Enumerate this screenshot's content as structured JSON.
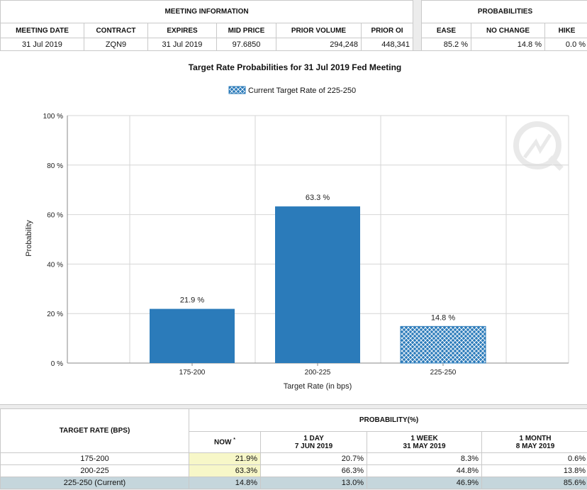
{
  "meeting": {
    "group_title": "MEETING INFORMATION",
    "headers": [
      "MEETING DATE",
      "CONTRACT",
      "EXPIRES",
      "MID PRICE",
      "PRIOR VOLUME",
      "PRIOR OI"
    ],
    "row": [
      "31 Jul 2019",
      "ZQN9",
      "31 Jul 2019",
      "97.6850",
      "294,248",
      "448,341"
    ]
  },
  "probabilities": {
    "group_title": "PROBABILITIES",
    "headers": [
      "EASE",
      "NO CHANGE",
      "HIKE"
    ],
    "row": [
      "85.2 %",
      "14.8 %",
      "0.0 %"
    ]
  },
  "chart_data": {
    "type": "bar",
    "title": "Target Rate Probabilities for 31 Jul 2019 Fed Meeting",
    "legend": "Current Target Rate of 225-250",
    "categories": [
      "175-200",
      "200-225",
      "225-250"
    ],
    "values": [
      21.9,
      63.3,
      14.8
    ],
    "data_labels": [
      "21.9 %",
      "63.3 %",
      "14.8 %"
    ],
    "current_category": "225-250",
    "xlabel": "Target Rate (in bps)",
    "ylabel": "Probability",
    "ylim": [
      0,
      100
    ],
    "yticks": [
      0,
      20,
      40,
      60,
      80,
      100
    ],
    "ytick_labels": [
      "0 %",
      "20 %",
      "40 %",
      "60 %",
      "80 %",
      "100 %"
    ],
    "bar_color": "#2b7bba",
    "grid": true,
    "legend_position": "top-center"
  },
  "bottom": {
    "rate_header": "TARGET RATE (BPS)",
    "prob_header": "PROBABILITY(%)",
    "columns": [
      {
        "line1": "NOW",
        "line2": "",
        "mark": "*"
      },
      {
        "line1": "1 DAY",
        "line2": "7 JUN 2019",
        "mark": ""
      },
      {
        "line1": "1 WEEK",
        "line2": "31 MAY 2019",
        "mark": ""
      },
      {
        "line1": "1 MONTH",
        "line2": "8 MAY 2019",
        "mark": ""
      }
    ],
    "rows": [
      {
        "rate": "175-200",
        "values": [
          "21.9%",
          "20.7%",
          "8.3%",
          "0.6%"
        ]
      },
      {
        "rate": "200-225",
        "values": [
          "63.3%",
          "66.3%",
          "44.8%",
          "13.8%"
        ]
      },
      {
        "rate": "225-250 (Current)",
        "values": [
          "14.8%",
          "13.0%",
          "46.9%",
          "85.6%"
        ]
      }
    ]
  },
  "colors": {
    "bar": "#2b7bba",
    "now_highlight": "#f7f7c8",
    "current_row": "#c5d6dc"
  }
}
